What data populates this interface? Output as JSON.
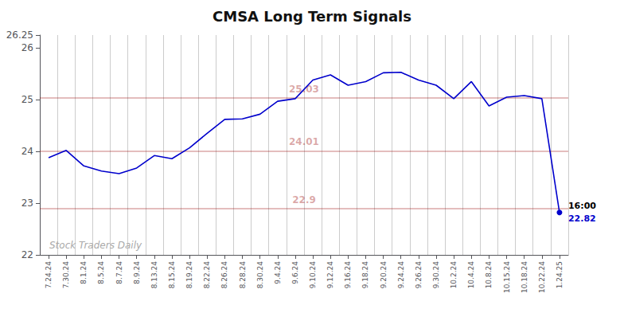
{
  "chart_data": {
    "type": "line",
    "title": "CMSA Long Term Signals",
    "color": "#0000cc",
    "categories": [
      "7.24.24",
      "7.30.24",
      "8.1.24",
      "8.5.24",
      "8.7.24",
      "8.9.24",
      "8.13.24",
      "8.15.24",
      "8.19.24",
      "8.22.24",
      "8.26.24",
      "8.28.24",
      "8.30.24",
      "9.4.24",
      "9.6.24",
      "9.10.24",
      "9.12.24",
      "9.16.24",
      "9.18.24",
      "9.20.24",
      "9.24.24",
      "9.26.24",
      "9.30.24",
      "10.2.24",
      "10.4.24",
      "10.8.24",
      "10.15.24",
      "10.18.24",
      "10.22.24",
      "1.24.25"
    ],
    "values": [
      23.88,
      24.02,
      23.72,
      23.62,
      23.57,
      23.68,
      23.92,
      23.86,
      24.07,
      24.35,
      24.62,
      24.63,
      24.72,
      24.97,
      25.02,
      25.38,
      25.48,
      25.28,
      25.35,
      25.52,
      25.53,
      25.38,
      25.28,
      25.02,
      25.35,
      24.88,
      25.05,
      25.08,
      25.02,
      22.82
    ],
    "ylim": [
      22.0,
      26.25
    ],
    "yticks": [
      22,
      23,
      24,
      25,
      26
    ],
    "grid": "x",
    "hlines": [
      {
        "value": 25.03,
        "label": "25.03",
        "color": "#990000"
      },
      {
        "value": 24.01,
        "label": "24.01",
        "color": "#990000"
      },
      {
        "value": 22.9,
        "label": "22.9",
        "color": "#990000"
      }
    ],
    "annotations": [
      {
        "text": "16:00",
        "x": "1.24.25",
        "y": 22.82,
        "color": "#000000"
      },
      {
        "text": "22.82",
        "x": "1.24.25",
        "y": 22.82,
        "color": "#0000cc"
      }
    ],
    "watermark": "Stock Traders Daily"
  }
}
